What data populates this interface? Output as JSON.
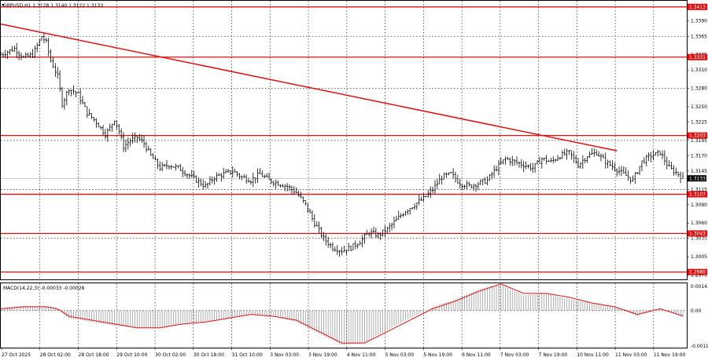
{
  "chart_data": [
    {
      "type": "candlestick",
      "title": "GBPUSD,H1  1.3128 1.3140 1.3122 1.3133",
      "symbol": "GBPUSD",
      "timeframe": "H1",
      "ohlc_readout": "1.3128 1.3140 1.3122 1.3133",
      "current_price": "1.3133",
      "ylim": [
        1.2968,
        1.3423
      ],
      "y_ticks": [
        "1.3390",
        "1.3365",
        "1.3335",
        "1.3310",
        "1.3280",
        "1.3250",
        "1.3225",
        "1.3195",
        "1.3170",
        "1.3145",
        "1.3115",
        "1.3090",
        "1.3060",
        "1.3035",
        "1.3005",
        "1.2975"
      ],
      "x_ticks": [
        "27 Oct 2025",
        "28 Oct 02:00",
        "28 Oct 18:00",
        "29 Oct 10:00",
        "30 Oct 02:00",
        "30 Oct 18:00",
        "31 Oct 10:00",
        "3 Nov 03:00",
        "3 Nov 19:00",
        "4 Nov 11:00",
        "5 Nov 03:00",
        "5 Nov 19:00",
        "6 Nov 11:00",
        "7 Nov 03:00",
        "7 Nov 19:00",
        "10 Nov 11:00",
        "11 Nov 03:00",
        "11 Nov 19:00"
      ],
      "levels": [
        {
          "label": "1.3413",
          "value": 1.3413
        },
        {
          "label": "1.3331",
          "value": 1.3331
        },
        {
          "label": "1.3203",
          "value": 1.3203
        },
        {
          "label": "1.3107",
          "value": 1.3107
        },
        {
          "label": "1.3043",
          "value": 1.3043
        },
        {
          "label": "1.2980",
          "value": 1.298
        }
      ],
      "trendline": {
        "start": {
          "bar": 0,
          "price": 1.3385
        },
        "end": {
          "bar": 270,
          "price": 1.3178
        }
      },
      "close_path": [
        [
          0,
          1.3335
        ],
        [
          6,
          1.3345
        ],
        [
          10,
          1.333
        ],
        [
          14,
          1.3335
        ],
        [
          18,
          1.3365
        ],
        [
          20,
          1.3355
        ],
        [
          22,
          1.3325
        ],
        [
          25,
          1.33
        ],
        [
          27,
          1.3255
        ],
        [
          30,
          1.328
        ],
        [
          34,
          1.327
        ],
        [
          38,
          1.324
        ],
        [
          42,
          1.3225
        ],
        [
          46,
          1.3205
        ],
        [
          48,
          1.3215
        ],
        [
          50,
          1.323
        ],
        [
          52,
          1.321
        ],
        [
          54,
          1.3185
        ],
        [
          57,
          1.3195
        ],
        [
          60,
          1.32
        ],
        [
          63,
          1.319
        ],
        [
          66,
          1.317
        ],
        [
          70,
          1.315
        ],
        [
          74,
          1.3155
        ],
        [
          78,
          1.315
        ],
        [
          82,
          1.314
        ],
        [
          86,
          1.313
        ],
        [
          90,
          1.312
        ],
        [
          94,
          1.3135
        ],
        [
          98,
          1.314
        ],
        [
          102,
          1.3145
        ],
        [
          106,
          1.3135
        ],
        [
          110,
          1.313
        ],
        [
          114,
          1.314
        ],
        [
          118,
          1.313
        ],
        [
          122,
          1.3125
        ],
        [
          126,
          1.312
        ],
        [
          130,
          1.311
        ],
        [
          134,
          1.309
        ],
        [
          138,
          1.306
        ],
        [
          142,
          1.3035
        ],
        [
          146,
          1.302
        ],
        [
          150,
          1.3015
        ],
        [
          154,
          1.302
        ],
        [
          158,
          1.303
        ],
        [
          162,
          1.3045
        ],
        [
          166,
          1.304
        ],
        [
          170,
          1.305
        ],
        [
          174,
          1.3065
        ],
        [
          178,
          1.308
        ],
        [
          182,
          1.309
        ],
        [
          186,
          1.31
        ],
        [
          190,
          1.3115
        ],
        [
          194,
          1.3135
        ],
        [
          198,
          1.314
        ],
        [
          202,
          1.3125
        ],
        [
          206,
          1.312
        ],
        [
          210,
          1.3125
        ],
        [
          214,
          1.313
        ],
        [
          218,
          1.315
        ],
        [
          222,
          1.3165
        ],
        [
          226,
          1.316
        ],
        [
          230,
          1.3155
        ],
        [
          234,
          1.315
        ],
        [
          238,
          1.3165
        ],
        [
          242,
          1.316
        ],
        [
          246,
          1.317
        ],
        [
          250,
          1.3175
        ],
        [
          254,
          1.3155
        ],
        [
          258,
          1.317
        ],
        [
          262,
          1.3175
        ],
        [
          266,
          1.316
        ],
        [
          270,
          1.315
        ],
        [
          274,
          1.314
        ],
        [
          278,
          1.313
        ],
        [
          282,
          1.316
        ],
        [
          286,
          1.317
        ],
        [
          290,
          1.3175
        ],
        [
          294,
          1.315
        ],
        [
          298,
          1.314
        ],
        [
          300,
          1.3133
        ]
      ]
    },
    {
      "type": "bar",
      "title": "MACD(14,22,3) -0.00033 -0.00028",
      "indicator": "MACD",
      "params": "(14,22,3)",
      "values_readout": "-0.00033 -0.00028",
      "ylim": [
        -0.00194,
        0.00143
      ],
      "y_ticks": [
        "0.00143",
        "0.00",
        "-0.00194"
      ],
      "histogram": [
        [
          0,
          0.0001
        ],
        [
          10,
          0.00025
        ],
        [
          20,
          0.0002
        ],
        [
          25,
          0.0001
        ],
        [
          30,
          -0.0004
        ],
        [
          40,
          -0.0006
        ],
        [
          50,
          -0.0008
        ],
        [
          60,
          -0.0009
        ],
        [
          70,
          -0.0009
        ],
        [
          80,
          -0.0007
        ],
        [
          90,
          -0.0006
        ],
        [
          100,
          -0.0004
        ],
        [
          110,
          -0.0002
        ],
        [
          120,
          -0.0003
        ],
        [
          130,
          -0.0006
        ],
        [
          140,
          -0.0012
        ],
        [
          150,
          -0.0018
        ],
        [
          160,
          -0.0017
        ],
        [
          170,
          -0.001
        ],
        [
          180,
          -0.0004
        ],
        [
          190,
          0.0002
        ],
        [
          200,
          0.0006
        ],
        [
          210,
          0.0011
        ],
        [
          220,
          0.0014
        ],
        [
          230,
          0.0008
        ],
        [
          240,
          0.0009
        ],
        [
          250,
          0.0006
        ],
        [
          260,
          0.0004
        ],
        [
          270,
          0.0002
        ],
        [
          280,
          -0.0003
        ],
        [
          290,
          0.0001
        ],
        [
          300,
          -0.00033
        ]
      ],
      "signal": [
        [
          0,
          0.0001
        ],
        [
          10,
          0.0002
        ],
        [
          20,
          0.0002
        ],
        [
          25,
          0.0001
        ],
        [
          30,
          -0.0003
        ],
        [
          40,
          -0.0005
        ],
        [
          50,
          -0.0007
        ],
        [
          60,
          -0.0009
        ],
        [
          70,
          -0.0009
        ],
        [
          80,
          -0.0007
        ],
        [
          90,
          -0.0006
        ],
        [
          100,
          -0.0004
        ],
        [
          110,
          -0.0002
        ],
        [
          120,
          -0.0003
        ],
        [
          130,
          -0.0005
        ],
        [
          140,
          -0.0011
        ],
        [
          150,
          -0.0017
        ],
        [
          160,
          -0.0017
        ],
        [
          170,
          -0.0011
        ],
        [
          180,
          -0.0005
        ],
        [
          190,
          0.0001
        ],
        [
          200,
          0.0005
        ],
        [
          210,
          0.001
        ],
        [
          220,
          0.0014
        ],
        [
          230,
          0.0009
        ],
        [
          240,
          0.0009
        ],
        [
          250,
          0.0007
        ],
        [
          260,
          0.0004
        ],
        [
          270,
          0.0002
        ],
        [
          280,
          -0.0002
        ],
        [
          290,
          0.0001
        ],
        [
          300,
          -0.00028
        ]
      ]
    }
  ],
  "colors": {
    "background": "#ffffff",
    "level": "#e01010",
    "trendline": "#e01010",
    "candle": "#000000",
    "grid": "#000000",
    "histogram": "#9a9a9a",
    "signal": "#e01010",
    "price_tag": "#000000"
  }
}
